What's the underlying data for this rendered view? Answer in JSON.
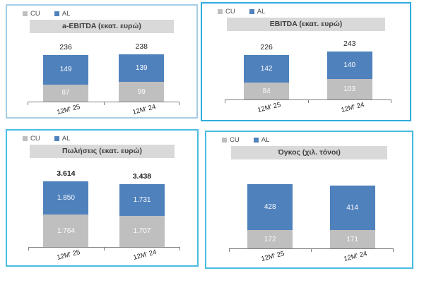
{
  "page": {
    "background": "#ffffff"
  },
  "colors": {
    "bar_cu": "#bfbfbf",
    "bar_al": "#4f81bd",
    "title_band_bg": "#d9d9d9",
    "title_text": "#3f3f3f",
    "axis_line": "#7f7f7f",
    "segment_label_text": "#fbfbfb",
    "total_label_text": "#1f1f1f"
  },
  "chart_data": [
    {
      "type": "bar",
      "stacked": true,
      "title": "a-EBITDA (εκατ. ευρώ)",
      "categories": [
        "12M' 25",
        "12M' 24"
      ],
      "series": [
        {
          "name": "CU",
          "color": "#bfbfbf",
          "values": [
            87,
            99
          ],
          "labels": [
            "87",
            "99"
          ]
        },
        {
          "name": "AL",
          "color": "#4f81bd",
          "values": [
            149,
            139
          ],
          "labels": [
            "149",
            "139"
          ]
        }
      ],
      "totals": {
        "show": true,
        "bold": false,
        "values": [
          236,
          238
        ],
        "labels": [
          "236",
          "238"
        ]
      },
      "ylim": [
        0,
        285
      ],
      "legend_position": "top-left",
      "grid": false,
      "border_color": "#a6cde6"
    },
    {
      "type": "bar",
      "stacked": true,
      "title": "EBITDA (εκατ. ευρώ)",
      "categories": [
        "12M' 25",
        "12M' 24"
      ],
      "series": [
        {
          "name": "CU",
          "color": "#bfbfbf",
          "values": [
            84,
            103
          ],
          "labels": [
            "84",
            "103"
          ]
        },
        {
          "name": "AL",
          "color": "#4f81bd",
          "values": [
            142,
            140
          ],
          "labels": [
            "142",
            "140"
          ]
        }
      ],
      "totals": {
        "show": true,
        "bold": false,
        "values": [
          226,
          243
        ],
        "labels": [
          "226",
          "243"
        ]
      },
      "ylim": [
        0,
        285
      ],
      "legend_position": "top-left",
      "grid": false,
      "border_color": "#2fadde"
    },
    {
      "type": "bar",
      "stacked": true,
      "title": "Πωλήσεις (εκατ. ευρώ)",
      "categories": [
        "12M' 25",
        "12M' 24"
      ],
      "series": [
        {
          "name": "CU",
          "color": "#bfbfbf",
          "values": [
            1764,
            1707
          ],
          "labels": [
            "1.764",
            "1.707"
          ]
        },
        {
          "name": "AL",
          "color": "#4f81bd",
          "values": [
            1850,
            1731
          ],
          "labels": [
            "1.850",
            "1.731"
          ]
        }
      ],
      "totals": {
        "show": true,
        "bold": true,
        "values": [
          3614,
          3438
        ],
        "labels": [
          "3.614",
          "3.438"
        ]
      },
      "ylim": [
        0,
        4100
      ],
      "legend_position": "top-left",
      "grid": false,
      "border_color": "#49bce2"
    },
    {
      "type": "bar",
      "stacked": true,
      "title": "Όγκος (χιλ. τόνοι)",
      "categories": [
        "12M' 25",
        "12M' 24"
      ],
      "series": [
        {
          "name": "CU",
          "color": "#bfbfbf",
          "values": [
            172,
            171
          ],
          "labels": [
            "172",
            "171"
          ]
        },
        {
          "name": "AL",
          "color": "#4f81bd",
          "values": [
            428,
            414
          ],
          "labels": [
            "428",
            "414"
          ]
        }
      ],
      "totals": {
        "show": false
      },
      "ylim": [
        0,
        700
      ],
      "legend_position": "top-left",
      "grid": false,
      "border_color": "#49bce2"
    }
  ]
}
